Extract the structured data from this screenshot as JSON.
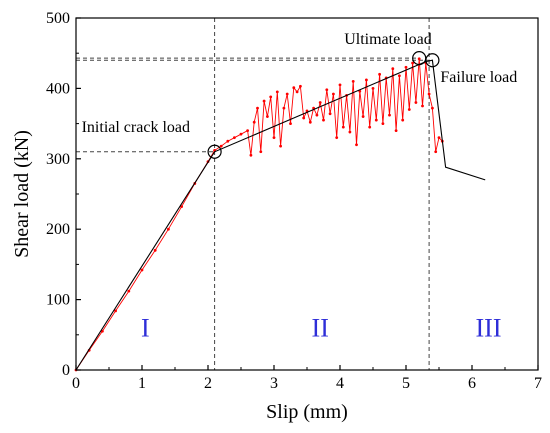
{
  "chart_data": {
    "type": "line",
    "xlabel": "Slip (mm)",
    "ylabel": "Shear load (kN)",
    "xlim": [
      0,
      7
    ],
    "ylim": [
      0,
      500
    ],
    "xticks": [
      0,
      1,
      2,
      3,
      4,
      5,
      6,
      7
    ],
    "yticks": [
      0,
      100,
      200,
      300,
      400,
      500
    ],
    "grid": false,
    "series": [
      {
        "role": "measured",
        "color": "#ff0000",
        "marker": "dot",
        "x": [
          0,
          0.2,
          0.4,
          0.6,
          0.8,
          1.0,
          1.2,
          1.4,
          1.6,
          1.8,
          2.0,
          2.1,
          2.2,
          2.3,
          2.4,
          2.5,
          2.6,
          2.65,
          2.7,
          2.75,
          2.8,
          2.85,
          2.9,
          2.95,
          3.0,
          3.05,
          3.1,
          3.15,
          3.2,
          3.25,
          3.3,
          3.35,
          3.4,
          3.45,
          3.5,
          3.55,
          3.6,
          3.65,
          3.7,
          3.75,
          3.8,
          3.85,
          3.9,
          3.95,
          4.0,
          4.05,
          4.1,
          4.15,
          4.2,
          4.25,
          4.3,
          4.35,
          4.4,
          4.45,
          4.5,
          4.55,
          4.6,
          4.65,
          4.7,
          4.75,
          4.8,
          4.85,
          4.9,
          4.95,
          5.0,
          5.05,
          5.1,
          5.15,
          5.2,
          5.25,
          5.3,
          5.35,
          5.4,
          5.45,
          5.5,
          5.55
        ],
        "y": [
          0,
          28,
          55,
          84,
          112,
          142,
          170,
          200,
          232,
          265,
          296,
          312,
          318,
          325,
          330,
          335,
          340,
          305,
          352,
          372,
          310,
          382,
          360,
          388,
          330,
          395,
          318,
          372,
          392,
          350,
          401,
          395,
          403,
          358,
          368,
          352,
          372,
          362,
          380,
          355,
          398,
          364,
          392,
          330,
          405,
          345,
          390,
          338,
          410,
          320,
          396,
          360,
          412,
          345,
          400,
          355,
          420,
          350,
          415,
          362,
          428,
          340,
          418,
          355,
          430,
          370,
          436,
          380,
          442,
          375,
          436,
          392,
          372,
          310,
          330,
          325
        ]
      },
      {
        "role": "trilinear-fit",
        "color": "#000000",
        "x": [
          0,
          2.1,
          5.3,
          5.4,
          5.6,
          6.2
        ],
        "y": [
          0,
          310,
          438,
          440,
          288,
          270
        ]
      }
    ],
    "reference_lines": [
      {
        "label": "Initial crack load",
        "x": 2.1,
        "y": 310
      },
      {
        "label": "Ultimate load",
        "x": 5.2,
        "y": 443
      },
      {
        "label": "Failure load",
        "x": 5.4,
        "y": 440
      }
    ],
    "stage_dividers_x": [
      2.1,
      5.35
    ],
    "regions": [
      {
        "label": "I",
        "x": 1.05,
        "y": 62
      },
      {
        "label": "II",
        "x": 3.7,
        "y": 62
      },
      {
        "label": "III",
        "x": 6.25,
        "y": 62
      }
    ]
  }
}
